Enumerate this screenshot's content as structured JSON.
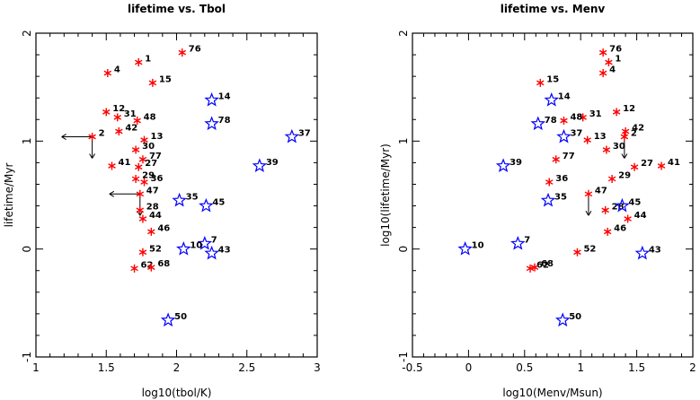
{
  "chart_data": [
    {
      "type": "scatter",
      "title": "lifetime vs. Tbol",
      "xlabel": "log10(tbol/K)",
      "ylabel": "lifetime/Myr",
      "xlim": [
        1,
        3
      ],
      "ylim": [
        -1,
        2
      ],
      "xticks": [
        1,
        1.5,
        2,
        2.5,
        3
      ],
      "yticks": [
        -1,
        0,
        1,
        2
      ],
      "grid": false,
      "points": [
        {
          "id": "76",
          "x": 2.04,
          "y": 1.82,
          "marker": "asterisk",
          "color": "#ff0000"
        },
        {
          "id": "1",
          "x": 1.73,
          "y": 1.73,
          "marker": "asterisk",
          "color": "#ff0000"
        },
        {
          "id": "4",
          "x": 1.51,
          "y": 1.63,
          "marker": "asterisk",
          "color": "#ff0000"
        },
        {
          "id": "15",
          "x": 1.83,
          "y": 1.54,
          "marker": "asterisk",
          "color": "#ff0000"
        },
        {
          "id": "12",
          "x": 1.5,
          "y": 1.27,
          "marker": "asterisk",
          "color": "#ff0000"
        },
        {
          "id": "31",
          "x": 1.58,
          "y": 1.22,
          "marker": "asterisk",
          "color": "#ff0000"
        },
        {
          "id": "48",
          "x": 1.72,
          "y": 1.19,
          "marker": "asterisk",
          "color": "#ff0000"
        },
        {
          "id": "42",
          "x": 1.59,
          "y": 1.09,
          "marker": "asterisk",
          "color": "#ff0000"
        },
        {
          "id": "2",
          "x": 1.4,
          "y": 1.04,
          "marker": "asterisk",
          "color": "#ff0000",
          "arrows": [
            "left",
            "down"
          ]
        },
        {
          "id": "13",
          "x": 1.77,
          "y": 1.01,
          "marker": "asterisk",
          "color": "#ff0000"
        },
        {
          "id": "30",
          "x": 1.71,
          "y": 0.92,
          "marker": "asterisk",
          "color": "#ff0000"
        },
        {
          "id": "77",
          "x": 1.76,
          "y": 0.83,
          "marker": "asterisk",
          "color": "#ff0000"
        },
        {
          "id": "41",
          "x": 1.54,
          "y": 0.77,
          "marker": "asterisk",
          "color": "#ff0000"
        },
        {
          "id": "27",
          "x": 1.73,
          "y": 0.76,
          "marker": "asterisk",
          "color": "#ff0000"
        },
        {
          "id": "29",
          "x": 1.71,
          "y": 0.65,
          "marker": "asterisk",
          "color": "#ff0000"
        },
        {
          "id": "36",
          "x": 1.77,
          "y": 0.62,
          "marker": "asterisk",
          "color": "#ff0000"
        },
        {
          "id": "47",
          "x": 1.74,
          "y": 0.51,
          "marker": "asterisk",
          "color": "#ff0000",
          "arrows": [
            "left",
            "down"
          ]
        },
        {
          "id": "28",
          "x": 1.74,
          "y": 0.36,
          "marker": "asterisk",
          "color": "#ff0000"
        },
        {
          "id": "44",
          "x": 1.76,
          "y": 0.28,
          "marker": "asterisk",
          "color": "#ff0000"
        },
        {
          "id": "46",
          "x": 1.82,
          "y": 0.16,
          "marker": "asterisk",
          "color": "#ff0000"
        },
        {
          "id": "52",
          "x": 1.76,
          "y": -0.03,
          "marker": "asterisk",
          "color": "#ff0000"
        },
        {
          "id": "62",
          "x": 1.7,
          "y": -0.18,
          "marker": "asterisk",
          "color": "#ff0000"
        },
        {
          "id": "68",
          "x": 1.82,
          "y": -0.17,
          "marker": "asterisk",
          "color": "#ff0000"
        },
        {
          "id": "14",
          "x": 2.25,
          "y": 1.38,
          "marker": "star",
          "color": "#0000ff"
        },
        {
          "id": "78",
          "x": 2.25,
          "y": 1.16,
          "marker": "star",
          "color": "#0000ff"
        },
        {
          "id": "37",
          "x": 2.82,
          "y": 1.04,
          "marker": "star",
          "color": "#0000ff"
        },
        {
          "id": "39",
          "x": 2.59,
          "y": 0.77,
          "marker": "star",
          "color": "#0000ff"
        },
        {
          "id": "35",
          "x": 2.02,
          "y": 0.45,
          "marker": "star",
          "color": "#0000ff"
        },
        {
          "id": "45",
          "x": 2.21,
          "y": 0.4,
          "marker": "star",
          "color": "#0000ff"
        },
        {
          "id": "7",
          "x": 2.2,
          "y": 0.05,
          "marker": "star",
          "color": "#0000ff"
        },
        {
          "id": "10",
          "x": 2.05,
          "y": 0.0,
          "marker": "star",
          "color": "#0000ff"
        },
        {
          "id": "43",
          "x": 2.25,
          "y": -0.04,
          "marker": "star",
          "color": "#0000ff"
        },
        {
          "id": "50",
          "x": 1.94,
          "y": -0.66,
          "marker": "star",
          "color": "#0000ff"
        }
      ]
    },
    {
      "type": "scatter",
      "title": "lifetime vs. Menv",
      "xlabel": "log10(Menv/Msun)",
      "ylabel": "log10(lifetime/Myr)",
      "xlim": [
        -0.5,
        2
      ],
      "ylim": [
        -1,
        2
      ],
      "xticks": [
        -0.5,
        0,
        0.5,
        1,
        1.5,
        2
      ],
      "yticks": [
        -1,
        0,
        1,
        2
      ],
      "grid": false,
      "points": [
        {
          "id": "76",
          "x": 1.2,
          "y": 1.82,
          "marker": "asterisk",
          "color": "#ff0000"
        },
        {
          "id": "1",
          "x": 1.25,
          "y": 1.73,
          "marker": "asterisk",
          "color": "#ff0000"
        },
        {
          "id": "4",
          "x": 1.2,
          "y": 1.63,
          "marker": "asterisk",
          "color": "#ff0000"
        },
        {
          "id": "15",
          "x": 0.64,
          "y": 1.54,
          "marker": "asterisk",
          "color": "#ff0000"
        },
        {
          "id": "12",
          "x": 1.32,
          "y": 1.27,
          "marker": "asterisk",
          "color": "#ff0000"
        },
        {
          "id": "31",
          "x": 1.02,
          "y": 1.22,
          "marker": "asterisk",
          "color": "#ff0000"
        },
        {
          "id": "48",
          "x": 0.85,
          "y": 1.19,
          "marker": "asterisk",
          "color": "#ff0000"
        },
        {
          "id": "42",
          "x": 1.4,
          "y": 1.09,
          "marker": "asterisk",
          "color": "#ff0000"
        },
        {
          "id": "2",
          "x": 1.39,
          "y": 1.04,
          "marker": "asterisk",
          "color": "#ff0000",
          "arrows": [
            "down"
          ]
        },
        {
          "id": "13",
          "x": 1.06,
          "y": 1.01,
          "marker": "asterisk",
          "color": "#ff0000"
        },
        {
          "id": "30",
          "x": 1.23,
          "y": 0.92,
          "marker": "asterisk",
          "color": "#ff0000"
        },
        {
          "id": "77",
          "x": 0.78,
          "y": 0.83,
          "marker": "asterisk",
          "color": "#ff0000"
        },
        {
          "id": "41",
          "x": 1.72,
          "y": 0.77,
          "marker": "asterisk",
          "color": "#ff0000"
        },
        {
          "id": "27",
          "x": 1.48,
          "y": 0.76,
          "marker": "asterisk",
          "color": "#ff0000"
        },
        {
          "id": "29",
          "x": 1.28,
          "y": 0.65,
          "marker": "asterisk",
          "color": "#ff0000"
        },
        {
          "id": "36",
          "x": 0.72,
          "y": 0.62,
          "marker": "asterisk",
          "color": "#ff0000"
        },
        {
          "id": "47",
          "x": 1.07,
          "y": 0.51,
          "marker": "asterisk",
          "color": "#ff0000",
          "arrows": [
            "down"
          ]
        },
        {
          "id": "28",
          "x": 1.22,
          "y": 0.36,
          "marker": "asterisk",
          "color": "#ff0000"
        },
        {
          "id": "44",
          "x": 1.42,
          "y": 0.28,
          "marker": "asterisk",
          "color": "#ff0000"
        },
        {
          "id": "46",
          "x": 1.24,
          "y": 0.16,
          "marker": "asterisk",
          "color": "#ff0000"
        },
        {
          "id": "52",
          "x": 0.97,
          "y": -0.03,
          "marker": "asterisk",
          "color": "#ff0000"
        },
        {
          "id": "62",
          "x": 0.55,
          "y": -0.18,
          "marker": "asterisk",
          "color": "#ff0000"
        },
        {
          "id": "68",
          "x": 0.59,
          "y": -0.17,
          "marker": "asterisk",
          "color": "#ff0000"
        },
        {
          "id": "14",
          "x": 0.74,
          "y": 1.38,
          "marker": "star",
          "color": "#0000ff"
        },
        {
          "id": "78",
          "x": 0.62,
          "y": 1.16,
          "marker": "star",
          "color": "#0000ff"
        },
        {
          "id": "37",
          "x": 0.85,
          "y": 1.04,
          "marker": "star",
          "color": "#0000ff"
        },
        {
          "id": "39",
          "x": 0.31,
          "y": 0.77,
          "marker": "star",
          "color": "#0000ff"
        },
        {
          "id": "35",
          "x": 0.71,
          "y": 0.45,
          "marker": "star",
          "color": "#0000ff"
        },
        {
          "id": "45",
          "x": 1.37,
          "y": 0.4,
          "marker": "star",
          "color": "#0000ff"
        },
        {
          "id": "7",
          "x": 0.44,
          "y": 0.05,
          "marker": "star",
          "color": "#0000ff"
        },
        {
          "id": "10",
          "x": -0.03,
          "y": 0.0,
          "marker": "star",
          "color": "#0000ff"
        },
        {
          "id": "43",
          "x": 1.55,
          "y": -0.04,
          "marker": "star",
          "color": "#0000ff"
        },
        {
          "id": "50",
          "x": 0.84,
          "y": -0.66,
          "marker": "star",
          "color": "#0000ff"
        }
      ]
    }
  ]
}
